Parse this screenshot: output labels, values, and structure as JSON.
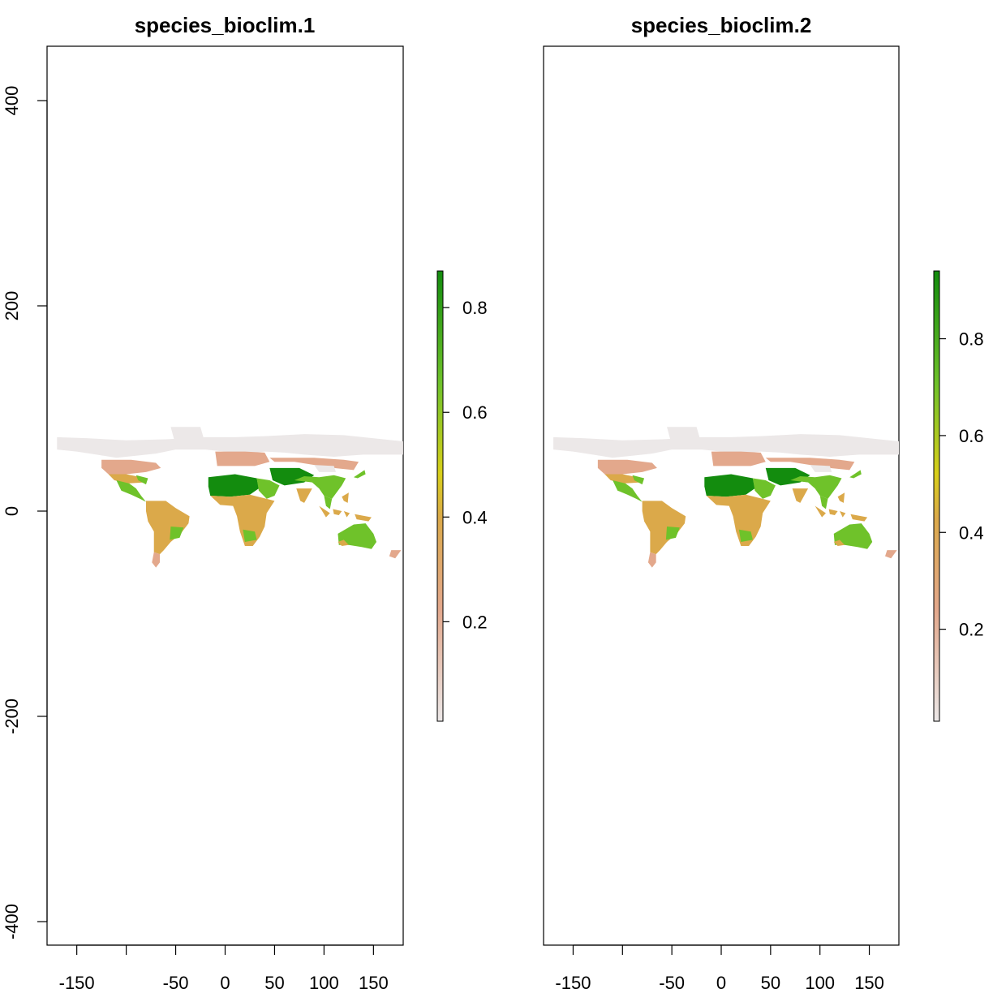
{
  "panels": [
    {
      "title": "species_bioclim.1",
      "x_ticks": [
        "-150",
        "-100",
        "-50",
        "0",
        "50",
        "100",
        "150"
      ],
      "x_tick_values": [
        -150,
        -100,
        -50,
        0,
        50,
        100,
        150
      ],
      "x_tick_labels_shown": [
        "-150",
        "",
        "-50",
        "0",
        "50",
        "100",
        "150"
      ],
      "y_ticks": [
        "-400",
        "-200",
        "0",
        "200",
        "400"
      ],
      "y_tick_values": [
        -400,
        -200,
        0,
        200,
        400
      ],
      "legend_ticks": [
        "0.2",
        "0.4",
        "0.6",
        "0.8"
      ],
      "legend_tick_values": [
        0.2,
        0.4,
        0.6,
        0.8
      ],
      "legend_range": [
        0.01,
        0.87
      ]
    },
    {
      "title": "species_bioclim.2",
      "x_ticks": [
        "-150",
        "-100",
        "-50",
        "0",
        "50",
        "100",
        "150"
      ],
      "x_tick_values": [
        -150,
        -100,
        -50,
        0,
        50,
        100,
        150
      ],
      "x_tick_labels_shown": [
        "-150",
        "",
        "-50",
        "0",
        "50",
        "100",
        "150"
      ],
      "legend_ticks": [
        "0.2",
        "0.4",
        "0.6",
        "0.8"
      ],
      "legend_tick_values": [
        0.2,
        0.4,
        0.6,
        0.8
      ],
      "legend_range": [
        0.01,
        0.94
      ]
    }
  ],
  "map_extent": {
    "xlim": [
      -180,
      180
    ],
    "ylim": [
      -420,
      450
    ],
    "data_lat_range": [
      -60,
      90
    ]
  },
  "colors": {
    "low": "#ece8e8",
    "mid_low": "#e3a88c",
    "mid": "#dba94a",
    "mid_high": "#d8cf1a",
    "high": "#138c0e"
  }
}
